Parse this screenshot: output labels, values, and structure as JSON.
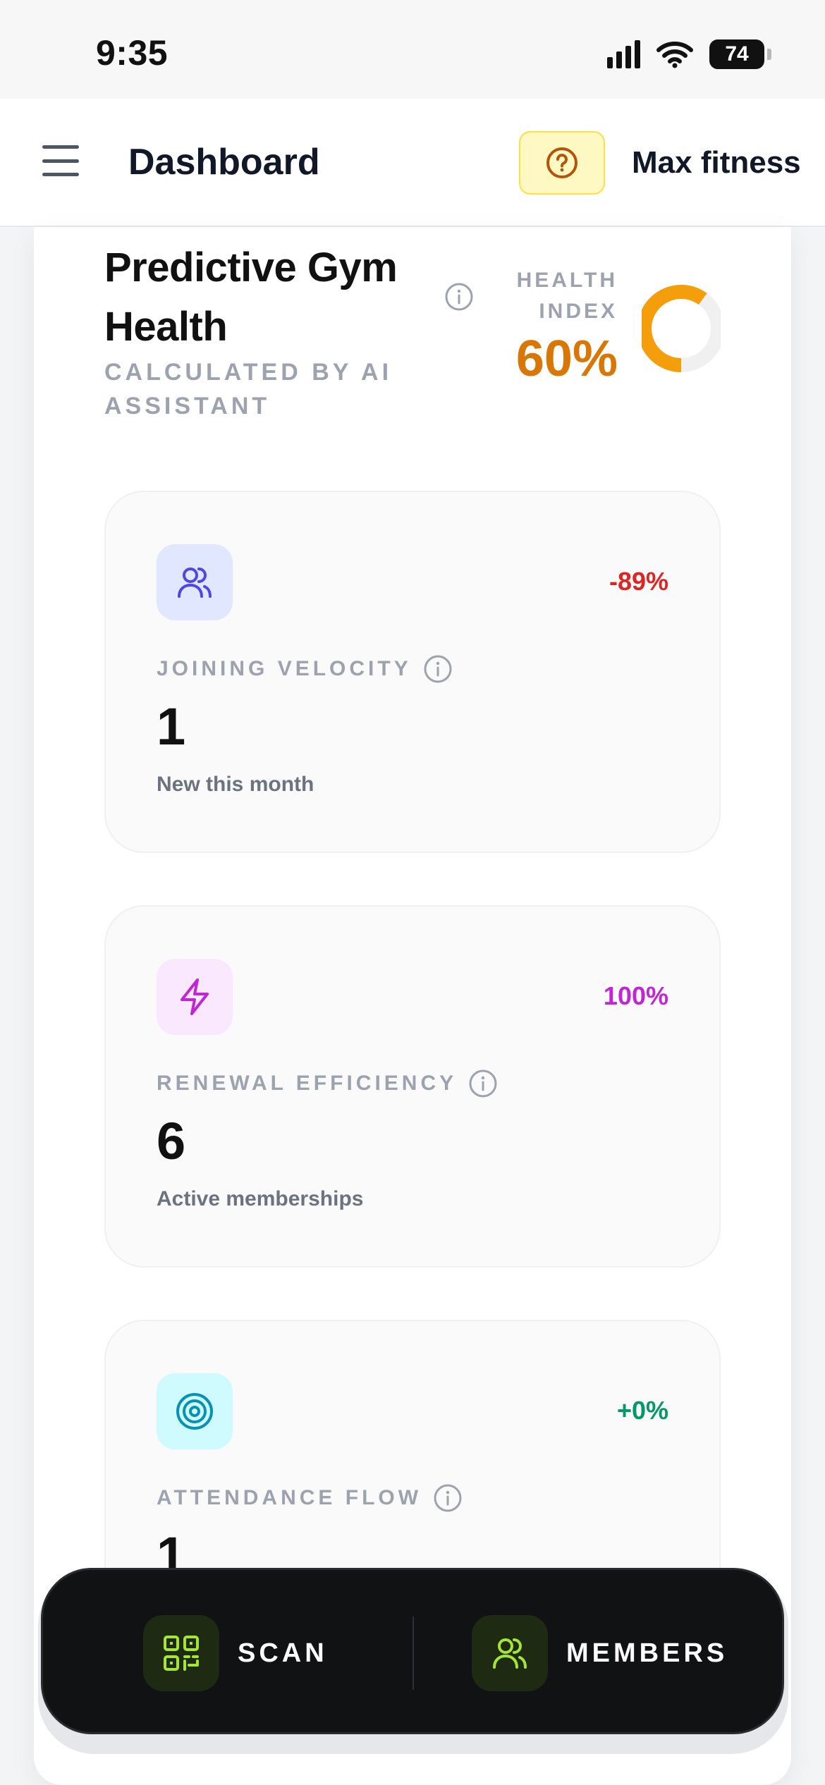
{
  "status_bar": {
    "time": "9:35",
    "battery": "74"
  },
  "header": {
    "title": "Dashboard",
    "gym_name": "Max fitness"
  },
  "health_card": {
    "title": "Predictive Gym Health",
    "subtitle": "CALCULATED BY AI ASSISTANT",
    "index_label": "HEALTH INDEX",
    "index_value": "60%",
    "index_fraction": 0.6
  },
  "metrics": [
    {
      "label": "JOINING VELOCITY",
      "value": "1",
      "caption": "New this month",
      "change": "-89%",
      "icon": "users-icon",
      "accent": "#dc2626",
      "icon_bg": "#e0e7ff",
      "icon_color": "#4f46e5"
    },
    {
      "label": "RENEWAL EFFICIENCY",
      "value": "6",
      "caption": "Active memberships",
      "change": "100%",
      "icon": "lightning-icon",
      "accent": "#c026d3",
      "icon_bg": "#fae8ff",
      "icon_color": "#c026d3"
    },
    {
      "label": "ATTENDANCE FLOW",
      "value": "1",
      "caption": "",
      "change": "+0%",
      "icon": "target-icon",
      "accent": "#059669",
      "icon_bg": "#cffafe",
      "icon_color": "#0891b2"
    }
  ],
  "bottom_nav": {
    "scan_label": "SCAN",
    "members_label": "MEMBERS",
    "accent": "#a3e635"
  }
}
